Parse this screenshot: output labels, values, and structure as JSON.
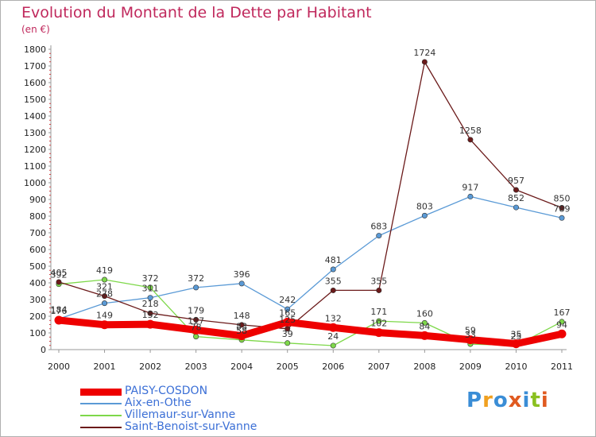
{
  "title": "Evolution du Montant de la Dette par Habitant",
  "unit_label": "(en €)",
  "logo": {
    "text": "Proxiti",
    "colors": [
      "#3a8dd6",
      "#f0a020",
      "#3a8dd6",
      "#e05a20",
      "#3a8dd6",
      "#8ac020",
      "#e05a20"
    ]
  },
  "chart_data": {
    "type": "line",
    "title": "Evolution du Montant de la Dette par Habitant",
    "ylabel": "(en €)",
    "xlabel": "",
    "x": [
      "2000",
      "2001",
      "2002",
      "2003",
      "2004",
      "2005",
      "2006",
      "2007",
      "2008",
      "2009",
      "2010",
      "2011"
    ],
    "ylim": [
      0,
      1800
    ],
    "yticks": [
      0,
      100,
      200,
      300,
      400,
      500,
      600,
      700,
      800,
      900,
      1000,
      1100,
      1200,
      1300,
      1400,
      1500,
      1600,
      1700,
      1800
    ],
    "grid": false,
    "legend_position": "bottom-left",
    "series": [
      {
        "name": "PAISY-COSDON",
        "color": "#ee0000",
        "thick": true,
        "values": [
          176,
          149,
          152,
          117,
          83,
          165,
          132,
          102,
          84,
          59,
          35,
          94
        ],
        "labels": [
          "176",
          "149",
          "152",
          "117",
          "83",
          "165",
          "132",
          "102",
          "84",
          "59",
          "35",
          "94"
        ]
      },
      {
        "name": "Aix-en-Othe",
        "color": "#5a9ad6",
        "thick": false,
        "values": [
          184,
          278,
          311,
          372,
          396,
          242,
          481,
          683,
          803,
          917,
          852,
          789
        ],
        "labels": [
          "184",
          "278",
          "311",
          "372",
          "396",
          "242",
          "481",
          "683",
          "803",
          "917",
          "852",
          "789"
        ]
      },
      {
        "name": "Villemaur-sur-Vanne",
        "color": "#7ed84a",
        "thick": false,
        "values": [
          392,
          419,
          372,
          78,
          58,
          39,
          24,
          171,
          160,
          33,
          25,
          167
        ],
        "labels": [
          "392",
          "419",
          "372",
          "78",
          "58",
          "39",
          "24",
          "171",
          "160",
          "33",
          "25",
          "167"
        ]
      },
      {
        "name": "Saint-Benoist-sur-Vanne",
        "color": "#6b1a1a",
        "thick": false,
        "values": [
          405,
          321,
          218,
          179,
          148,
          125,
          355,
          355,
          1724,
          1258,
          957,
          850
        ],
        "labels": [
          "405",
          "321",
          "218",
          "179",
          "148",
          "125",
          "355",
          "355",
          "1724",
          "1258",
          "957",
          "850"
        ]
      }
    ]
  }
}
